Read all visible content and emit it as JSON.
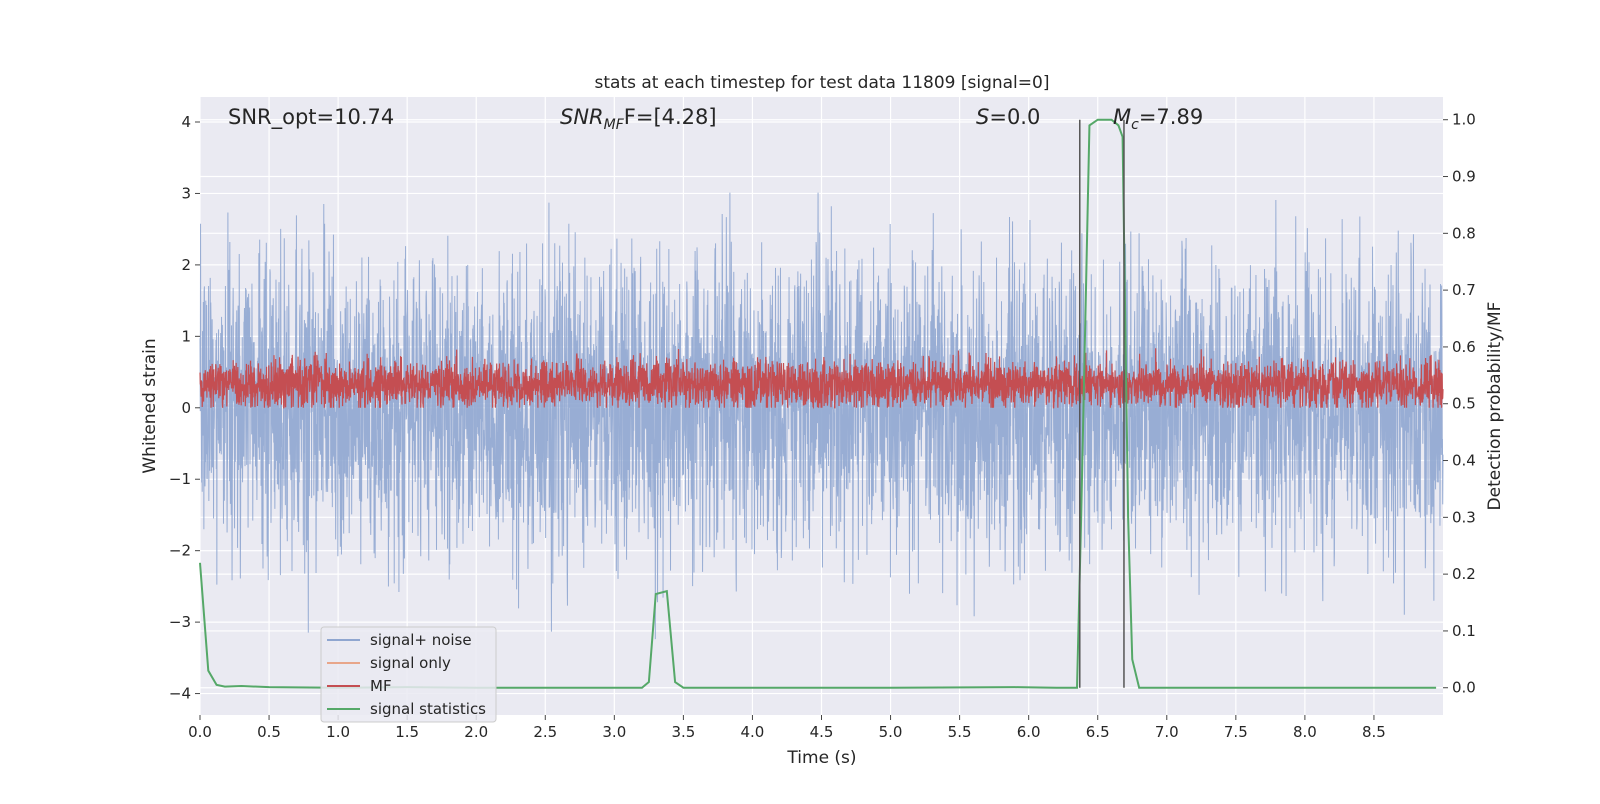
{
  "chart_data": {
    "type": "line",
    "title": "stats at each timestep for test data 11809 [signal=0]",
    "xlabel": "Time (s)",
    "ylabel": "Whitened strain",
    "y2label": "Detection probability/MF",
    "xlim": [
      0,
      9.0
    ],
    "ylim": [
      -4.3,
      4.35
    ],
    "y2lim": [
      -0.048,
      1.04
    ],
    "xticks": [
      "0.0",
      "0.5",
      "1.0",
      "1.5",
      "2.0",
      "2.5",
      "3.0",
      "3.5",
      "4.0",
      "4.5",
      "5.0",
      "5.5",
      "6.0",
      "6.5",
      "7.0",
      "7.5",
      "8.0",
      "8.5"
    ],
    "yticks": [
      "4",
      "3",
      "2",
      "1",
      "0",
      "−1",
      "−2",
      "−3",
      "−4"
    ],
    "y2ticks": [
      "1.0",
      "0.9",
      "0.8",
      "0.7",
      "0.6",
      "0.5",
      "0.4",
      "0.3",
      "0.2",
      "0.1",
      "0.0"
    ],
    "grid": true,
    "annotations": {
      "snr_opt": "SNR_opt=10.74",
      "snr_mf_main": "SNR",
      "snr_mf_sub": "MF",
      "snr_mf_rest": "F=[4.28]",
      "s_main": "S",
      "s_rest": "=0.0",
      "mc_main": "M",
      "mc_sub": "c",
      "mc_rest": "=7.89"
    },
    "legend": {
      "placement": "lower-left",
      "entries": [
        {
          "label": "signal+ noise",
          "color": "#8fa6d0"
        },
        {
          "label": "signal only",
          "color": "#e8a68a"
        },
        {
          "label": "MF",
          "color": "#c44e52"
        },
        {
          "label": "signal statistics",
          "color": "#55a868"
        }
      ]
    },
    "series": [
      {
        "name": "signal+ noise",
        "color": "#8fa6d0",
        "axis": "left",
        "kind": "noise",
        "y_center": 0.0,
        "y_spread": 1.05,
        "y_min_peak": -3.9,
        "y_max_peak": 4.0
      },
      {
        "name": "MF",
        "color": "#c44e52",
        "axis": "left",
        "kind": "noise",
        "y_center": 0.33,
        "y_spread": 0.17,
        "y_min_peak": 0.0,
        "y_max_peak": 1.0
      },
      {
        "name": "signal statistics",
        "color": "#55a868",
        "axis": "right",
        "x": [
          0.0,
          0.06,
          0.12,
          0.18,
          0.3,
          0.5,
          1.0,
          1.5,
          2.0,
          2.5,
          3.0,
          3.2,
          3.25,
          3.3,
          3.38,
          3.44,
          3.5,
          4.0,
          5.0,
          5.9,
          6.2,
          6.35,
          6.38,
          6.44,
          6.5,
          6.55,
          6.6,
          6.65,
          6.68,
          6.72,
          6.75,
          6.8,
          7.0,
          8.0,
          8.95
        ],
        "y": [
          0.22,
          0.03,
          0.005,
          0.002,
          0.003,
          0.001,
          0.0,
          0.001,
          0.0,
          0.0,
          0.0,
          0.0,
          0.01,
          0.165,
          0.17,
          0.01,
          0.0,
          0.0,
          0.0,
          0.001,
          0.0,
          0.0,
          0.3,
          0.99,
          1.0,
          1.0,
          1.0,
          0.99,
          0.97,
          0.3,
          0.05,
          0.0,
          0.0,
          0.0,
          0.0
        ]
      },
      {
        "name": "vertical markers",
        "color": "#555555",
        "axis": "right",
        "x_lines": [
          6.37,
          6.69
        ],
        "y_tops": [
          1.0,
          1.0
        ]
      }
    ]
  }
}
